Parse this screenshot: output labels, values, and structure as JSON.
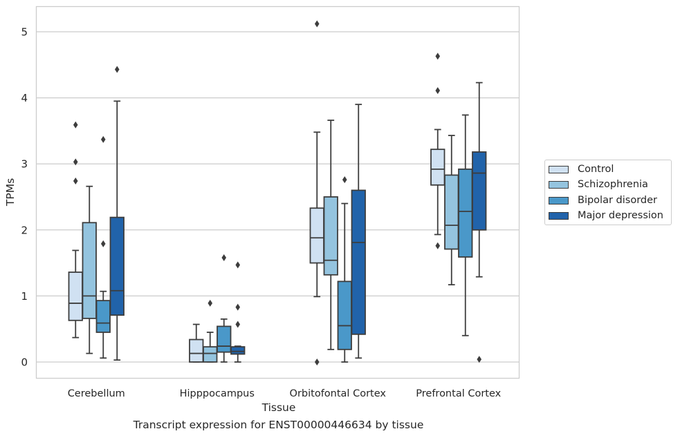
{
  "chart_data": {
    "type": "box",
    "xlabel": "Tissue",
    "ylabel": "TPMs",
    "ylim": [
      -0.25,
      5.4
    ],
    "yticks": [
      0,
      1,
      2,
      3,
      4,
      5
    ],
    "grid": "horizontal",
    "legend_placement": "right",
    "categories": [
      "Cerebellum",
      "Hipppocampus",
      "Orbitofontal Cortex",
      "Prefrontal Cortex"
    ],
    "series": [
      {
        "name": "Control",
        "color": "#d0e1f2",
        "boxes": [
          {
            "whisker_low": 0.37,
            "q1": 0.63,
            "median": 0.89,
            "q3": 1.36,
            "whisker_high": 1.69,
            "outliers": [
              2.74,
              3.03,
              3.59
            ]
          },
          {
            "whisker_low": 0.0,
            "q1": 0.0,
            "median": 0.13,
            "q3": 0.34,
            "whisker_high": 0.57,
            "outliers": []
          },
          {
            "whisker_low": 0.99,
            "q1": 1.5,
            "median": 1.88,
            "q3": 2.33,
            "whisker_high": 3.48,
            "outliers": [
              0.0,
              5.12
            ]
          },
          {
            "whisker_low": 1.93,
            "q1": 2.68,
            "median": 2.92,
            "q3": 3.22,
            "whisker_high": 3.52,
            "outliers": [
              1.76,
              4.11,
              4.63
            ]
          }
        ]
      },
      {
        "name": "Schizophrenia",
        "color": "#94c4df",
        "boxes": [
          {
            "whisker_low": 0.13,
            "q1": 0.66,
            "median": 1.0,
            "q3": 2.11,
            "whisker_high": 2.66,
            "outliers": []
          },
          {
            "whisker_low": 0.0,
            "q1": 0.0,
            "median": 0.13,
            "q3": 0.23,
            "whisker_high": 0.45,
            "outliers": [
              0.89
            ]
          },
          {
            "whisker_low": 0.19,
            "q1": 1.32,
            "median": 1.54,
            "q3": 2.5,
            "whisker_high": 3.66,
            "outliers": []
          },
          {
            "whisker_low": 1.17,
            "q1": 1.71,
            "median": 2.07,
            "q3": 2.83,
            "whisker_high": 3.43,
            "outliers": []
          }
        ]
      },
      {
        "name": "Bipolar disorder",
        "color": "#4a98c9",
        "boxes": [
          {
            "whisker_low": 0.06,
            "q1": 0.45,
            "median": 0.59,
            "q3": 0.93,
            "whisker_high": 1.07,
            "outliers": [
              1.79,
              3.37
            ]
          },
          {
            "whisker_low": 0.0,
            "q1": 0.15,
            "median": 0.24,
            "q3": 0.54,
            "whisker_high": 0.65,
            "outliers": [
              1.58
            ]
          },
          {
            "whisker_low": 0.0,
            "q1": 0.19,
            "median": 0.55,
            "q3": 1.22,
            "whisker_high": 2.4,
            "outliers": [
              2.76
            ]
          },
          {
            "whisker_low": 0.4,
            "q1": 1.59,
            "median": 2.28,
            "q3": 2.92,
            "whisker_high": 3.74,
            "outliers": []
          }
        ]
      },
      {
        "name": "Major depression",
        "color": "#2163aa",
        "boxes": [
          {
            "whisker_low": 0.03,
            "q1": 0.71,
            "median": 1.08,
            "q3": 2.19,
            "whisker_high": 3.95,
            "outliers": [
              4.43
            ]
          },
          {
            "whisker_low": 0.0,
            "q1": 0.12,
            "median": 0.16,
            "q3": 0.23,
            "whisker_high": 0.24,
            "outliers": [
              0.57,
              0.83,
              1.47
            ]
          },
          {
            "whisker_low": 0.06,
            "q1": 0.42,
            "median": 1.81,
            "q3": 2.6,
            "whisker_high": 3.9,
            "outliers": []
          },
          {
            "whisker_low": 1.29,
            "q1": 2.0,
            "median": 2.86,
            "q3": 3.18,
            "whisker_high": 4.23,
            "outliers": [
              0.04
            ]
          }
        ]
      }
    ]
  },
  "caption": "Transcript expression for ENST00000446634 by tissue"
}
